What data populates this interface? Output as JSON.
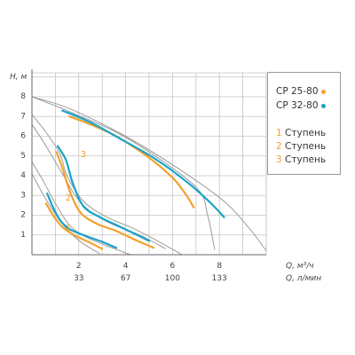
{
  "chart_data": {
    "type": "line",
    "ylabel": "H, м",
    "xlabel_primary": "Q, м³/ч",
    "xlabel_secondary": "Q, л/мин",
    "xlim": [
      0,
      10
    ],
    "ylim": [
      0,
      8.5
    ],
    "grid": true,
    "y_ticks": [
      "1",
      "2",
      "3",
      "4",
      "5",
      "6",
      "7",
      "8"
    ],
    "x_ticks_primary": [
      {
        "x": 2,
        "label": "2"
      },
      {
        "x": 4,
        "label": "4"
      },
      {
        "x": 6,
        "label": "6"
      },
      {
        "x": 8,
        "label": "8"
      }
    ],
    "x_ticks_secondary": [
      {
        "x": 2,
        "label": "33"
      },
      {
        "x": 4,
        "label": "67"
      },
      {
        "x": 6,
        "label": "100"
      },
      {
        "x": 8,
        "label": "133"
      }
    ],
    "colors": {
      "cp25": "#f2a22a",
      "cp32": "#1aa3c8",
      "envelope": "#9c9c9c",
      "grid": "#c4c4c4"
    },
    "series": [
      {
        "name": "CP 25-80 1",
        "model": "CP 25-80",
        "stage": "1",
        "color": "#f2a22a",
        "points": [
          [
            0.6,
            2.6
          ],
          [
            0.9,
            2.0
          ],
          [
            1.3,
            1.4
          ],
          [
            1.8,
            1.0
          ],
          [
            2.4,
            0.65
          ],
          [
            3.0,
            0.3
          ]
        ]
      },
      {
        "name": "CP 25-80 2",
        "model": "CP 25-80",
        "stage": "2",
        "color": "#f2a22a",
        "points": [
          [
            1.05,
            5.2
          ],
          [
            1.3,
            4.4
          ],
          [
            1.65,
            3.1
          ],
          [
            2.1,
            2.1
          ],
          [
            2.8,
            1.55
          ],
          [
            3.6,
            1.2
          ],
          [
            4.5,
            0.7
          ],
          [
            5.2,
            0.35
          ]
        ]
      },
      {
        "name": "CP 25-80 3",
        "model": "CP 25-80",
        "stage": "3",
        "color": "#f2a22a",
        "points": [
          [
            1.6,
            7.0
          ],
          [
            2.5,
            6.6
          ],
          [
            3.6,
            6.0
          ],
          [
            4.9,
            5.0
          ],
          [
            6.0,
            3.9
          ],
          [
            6.6,
            3.0
          ],
          [
            6.9,
            2.4
          ]
        ]
      },
      {
        "name": "CP 32-80 1",
        "model": "CP 32-80",
        "stage": "1",
        "color": "#1aa3c8",
        "points": [
          [
            0.65,
            3.1
          ],
          [
            0.9,
            2.4
          ],
          [
            1.2,
            1.75
          ],
          [
            1.6,
            1.3
          ],
          [
            2.3,
            0.95
          ],
          [
            3.0,
            0.65
          ],
          [
            3.6,
            0.35
          ]
        ]
      },
      {
        "name": "CP 32-80 2",
        "model": "CP 32-80",
        "stage": "2",
        "color": "#1aa3c8",
        "points": [
          [
            1.1,
            5.5
          ],
          [
            1.45,
            4.8
          ],
          [
            1.75,
            3.6
          ],
          [
            2.2,
            2.45
          ],
          [
            2.9,
            1.9
          ],
          [
            3.7,
            1.45
          ],
          [
            4.4,
            1.05
          ],
          [
            5.0,
            0.7
          ]
        ]
      },
      {
        "name": "CP 32-80 3",
        "model": "CP 32-80",
        "stage": "3",
        "color": "#1aa3c8",
        "points": [
          [
            1.3,
            7.3
          ],
          [
            2.5,
            6.7
          ],
          [
            3.8,
            5.85
          ],
          [
            5.2,
            4.9
          ],
          [
            6.6,
            3.7
          ],
          [
            7.6,
            2.65
          ],
          [
            8.2,
            1.9
          ]
        ]
      }
    ],
    "envelope_lines": [
      {
        "points": [
          [
            0,
            8.0
          ],
          [
            1.5,
            7.3
          ],
          [
            3.6,
            6.2
          ],
          [
            5.5,
            4.8
          ],
          [
            7.1,
            3.3
          ],
          [
            7.5,
            2.0
          ],
          [
            7.8,
            0.25
          ]
        ]
      },
      {
        "points": [
          [
            0,
            8.0
          ],
          [
            1.6,
            7.4
          ],
          [
            4.0,
            6.0
          ],
          [
            6.2,
            4.4
          ],
          [
            8.2,
            2.7
          ],
          [
            9.3,
            1.3
          ],
          [
            10.0,
            0.2
          ]
        ]
      },
      {
        "points": [
          [
            0,
            7.1
          ],
          [
            0.6,
            6.2
          ],
          [
            1.2,
            5.1
          ],
          [
            1.5,
            4.0
          ],
          [
            2.2,
            2.7
          ],
          [
            3.2,
            1.9
          ],
          [
            4.2,
            1.4
          ],
          [
            5.2,
            0.8
          ],
          [
            6.4,
            0.0
          ]
        ]
      },
      {
        "points": [
          [
            0,
            6.6
          ],
          [
            0.5,
            5.7
          ],
          [
            0.9,
            4.9
          ],
          [
            1.4,
            3.9
          ],
          [
            1.9,
            2.9
          ],
          [
            2.6,
            2.1
          ],
          [
            3.5,
            1.5
          ],
          [
            4.6,
            1.0
          ],
          [
            5.7,
            0.3
          ]
        ]
      },
      {
        "points": [
          [
            0,
            4.7
          ],
          [
            0.5,
            3.7
          ],
          [
            1.0,
            2.6
          ],
          [
            1.6,
            1.5
          ],
          [
            2.3,
            0.9
          ],
          [
            3.2,
            0.45
          ],
          [
            4.2,
            0.0
          ]
        ]
      },
      {
        "points": [
          [
            0,
            4.1
          ],
          [
            0.5,
            3.0
          ],
          [
            1.0,
            2.05
          ],
          [
            1.6,
            1.15
          ],
          [
            2.2,
            0.55
          ],
          [
            2.9,
            0.05
          ]
        ]
      }
    ],
    "curve_labels": [
      {
        "text": "1",
        "x": 1.55,
        "y": 1.3
      },
      {
        "text": "2",
        "x": 1.55,
        "y": 2.85
      },
      {
        "text": "3",
        "x": 2.2,
        "y": 5.05
      }
    ]
  },
  "legend": {
    "models": [
      {
        "label": "CP 25-80",
        "color": "#f2a22a"
      },
      {
        "label": "CP 32-80",
        "color": "#1aa3c8"
      }
    ],
    "stages": [
      {
        "num": "1",
        "label": "Ступень"
      },
      {
        "num": "2",
        "label": "Ступень"
      },
      {
        "num": "3",
        "label": "Ступень"
      }
    ]
  }
}
